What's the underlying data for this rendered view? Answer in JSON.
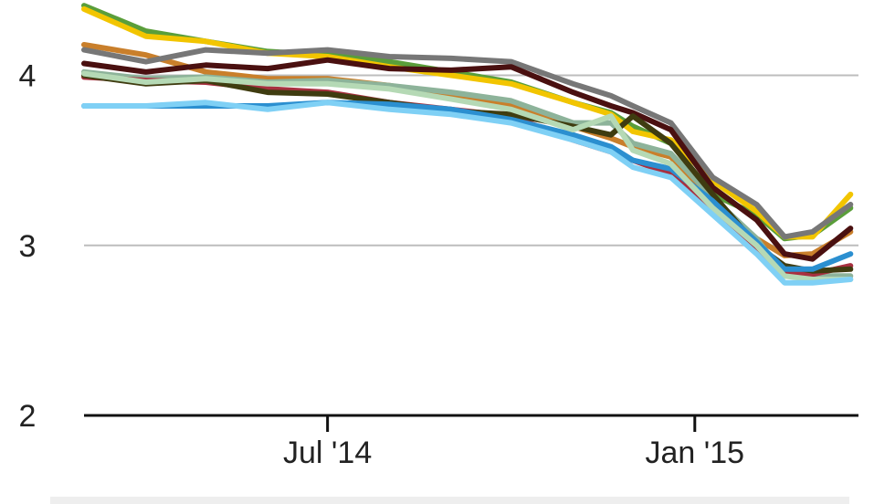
{
  "chart_data": {
    "type": "line",
    "title": "",
    "xlabel": "",
    "ylabel": "",
    "xlim": [
      "2014-03-01",
      "2015-03-24"
    ],
    "ylim": [
      2,
      4.4
    ],
    "y_ticks": [
      {
        "value": 2,
        "label": "2"
      },
      {
        "value": 3,
        "label": "3"
      },
      {
        "value": 4,
        "label": "4"
      }
    ],
    "x_ticks": [
      {
        "value": "2014-07-01",
        "label": "Jul '14"
      },
      {
        "value": "2015-01-01",
        "label": "Jan '15"
      }
    ],
    "grid": {
      "horizontal": true,
      "vertical": false
    },
    "legend": "none",
    "x": [
      "2014-03-01",
      "2014-04-01",
      "2014-05-01",
      "2014-06-01",
      "2014-07-01",
      "2014-08-01",
      "2014-09-01",
      "2014-10-01",
      "2014-11-01",
      "2014-11-20",
      "2014-12-01",
      "2014-12-20",
      "2015-01-10",
      "2015-02-01",
      "2015-02-15",
      "2015-03-01",
      "2015-03-20"
    ],
    "series": [
      {
        "color": "#5a9e3a",
        "values": [
          4.41,
          4.26,
          4.2,
          4.14,
          4.12,
          4.08,
          4.02,
          3.96,
          3.84,
          3.78,
          3.7,
          3.6,
          3.3,
          3.18,
          3.04,
          3.06,
          3.22
        ]
      },
      {
        "color": "#f2c500",
        "values": [
          4.39,
          4.23,
          4.2,
          4.13,
          4.11,
          4.05,
          4.0,
          3.95,
          3.84,
          3.77,
          3.67,
          3.62,
          3.38,
          3.2,
          3.05,
          3.05,
          3.3
        ]
      },
      {
        "color": "#c97f2b",
        "values": [
          4.18,
          4.12,
          4.02,
          3.98,
          3.98,
          3.94,
          3.88,
          3.82,
          3.7,
          3.63,
          3.58,
          3.52,
          3.26,
          3.04,
          2.94,
          2.95,
          3.08
        ]
      },
      {
        "color": "#777777",
        "values": [
          4.15,
          4.08,
          4.15,
          4.13,
          4.15,
          4.11,
          4.1,
          4.08,
          3.95,
          3.88,
          3.82,
          3.72,
          3.4,
          3.24,
          3.05,
          3.08,
          3.24
        ]
      },
      {
        "color": "#4a1010",
        "values": [
          4.07,
          4.02,
          4.06,
          4.04,
          4.09,
          4.04,
          4.03,
          4.05,
          3.9,
          3.82,
          3.78,
          3.68,
          3.34,
          3.15,
          2.95,
          2.92,
          3.1
        ]
      },
      {
        "color": "#8db39a",
        "values": [
          4.02,
          3.98,
          3.99,
          3.96,
          3.97,
          3.94,
          3.9,
          3.85,
          3.72,
          3.72,
          3.6,
          3.54,
          3.28,
          3.04,
          2.82,
          2.82,
          2.82
        ]
      },
      {
        "color": "#a83040",
        "values": [
          3.99,
          3.97,
          3.96,
          3.92,
          3.9,
          3.84,
          3.8,
          3.76,
          3.62,
          3.55,
          3.5,
          3.42,
          3.22,
          2.98,
          2.83,
          2.83,
          2.88
        ]
      },
      {
        "color": "#3f3c10",
        "values": [
          4.0,
          3.95,
          3.97,
          3.9,
          3.89,
          3.84,
          3.79,
          3.77,
          3.7,
          3.65,
          3.76,
          3.6,
          3.3,
          3.0,
          2.88,
          2.85,
          2.86
        ]
      },
      {
        "color": "#2b8fd0",
        "values": [
          3.82,
          3.82,
          3.82,
          3.82,
          3.84,
          3.83,
          3.8,
          3.74,
          3.65,
          3.58,
          3.5,
          3.45,
          3.26,
          3.02,
          2.86,
          2.86,
          2.95
        ]
      },
      {
        "color": "#b5d9b5",
        "values": [
          4.01,
          3.96,
          3.98,
          3.95,
          3.95,
          3.92,
          3.86,
          3.8,
          3.68,
          3.76,
          3.56,
          3.48,
          3.22,
          3.0,
          2.82,
          2.8,
          2.8
        ]
      },
      {
        "color": "#7fd0f5",
        "values": [
          3.82,
          3.82,
          3.84,
          3.8,
          3.84,
          3.8,
          3.77,
          3.72,
          3.62,
          3.55,
          3.46,
          3.4,
          3.18,
          2.95,
          2.78,
          2.78,
          2.8
        ]
      }
    ]
  }
}
